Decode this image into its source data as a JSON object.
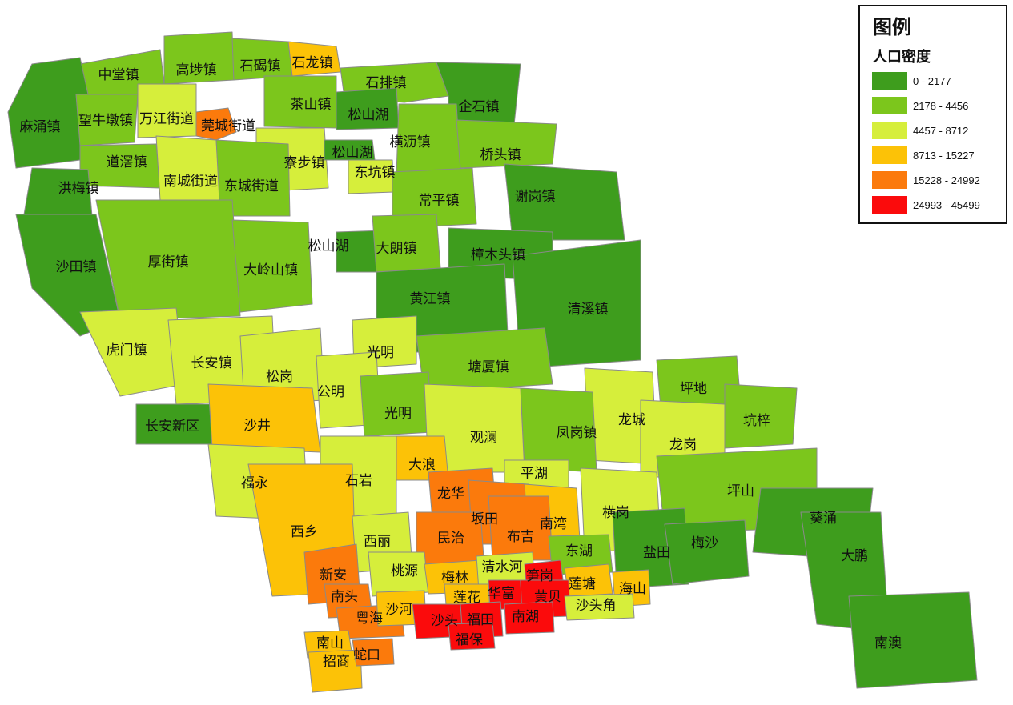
{
  "legend": {
    "title": "图例",
    "subtitle": "人口密度",
    "classes": [
      {
        "label": "0 - 2177",
        "color": "#3e9d1d"
      },
      {
        "label": "2178 - 4456",
        "color": "#7cc61c"
      },
      {
        "label": "4457 - 8712",
        "color": "#d6ee3b"
      },
      {
        "label": "8713 - 15227",
        "color": "#fcc207"
      },
      {
        "label": "15228 - 24992",
        "color": "#fb7a0c"
      },
      {
        "label": "24993 - 45499",
        "color": "#fb0b0c"
      }
    ]
  },
  "regions": [
    {
      "name": "中堂镇",
      "cls": 1
    },
    {
      "name": "高埗镇",
      "cls": 1
    },
    {
      "name": "石碣镇",
      "cls": 1
    },
    {
      "name": "石龙镇",
      "cls": 3
    },
    {
      "name": "石排镇",
      "cls": 1
    },
    {
      "name": "麻涌镇",
      "cls": 0
    },
    {
      "name": "望牛墩镇",
      "cls": 1
    },
    {
      "name": "万江街道",
      "cls": 2
    },
    {
      "name": "莞城街道",
      "cls": 4
    },
    {
      "name": "茶山镇",
      "cls": 1
    },
    {
      "name": "松山湖",
      "cls": 0
    },
    {
      "name": "企石镇",
      "cls": 0
    },
    {
      "name": "横沥镇",
      "cls": 1
    },
    {
      "name": "桥头镇",
      "cls": 1
    },
    {
      "name": "道滘镇",
      "cls": 1
    },
    {
      "name": "寮步镇",
      "cls": 2
    },
    {
      "name": "松山湖",
      "cls": 0
    },
    {
      "name": "东坑镇",
      "cls": 2
    },
    {
      "name": "南城街道",
      "cls": 2
    },
    {
      "name": "东城街道",
      "cls": 1
    },
    {
      "name": "洪梅镇",
      "cls": 0
    },
    {
      "name": "常平镇",
      "cls": 1
    },
    {
      "name": "谢岗镇",
      "cls": 0
    },
    {
      "name": "沙田镇",
      "cls": 0
    },
    {
      "name": "厚街镇",
      "cls": 1
    },
    {
      "name": "松山湖",
      "cls": 0
    },
    {
      "name": "大朗镇",
      "cls": 1
    },
    {
      "name": "大岭山镇",
      "cls": 1
    },
    {
      "name": "樟木头镇",
      "cls": 0
    },
    {
      "name": "黄江镇",
      "cls": 0
    },
    {
      "name": "清溪镇",
      "cls": 0
    },
    {
      "name": "虎门镇",
      "cls": 2
    },
    {
      "name": "长安镇",
      "cls": 2
    },
    {
      "name": "光明",
      "cls": 2
    },
    {
      "name": "塘厦镇",
      "cls": 1
    },
    {
      "name": "松岗",
      "cls": 2
    },
    {
      "name": "公明",
      "cls": 2
    },
    {
      "name": "坪地",
      "cls": 1
    },
    {
      "name": "长安新区",
      "cls": 0
    },
    {
      "name": "沙井",
      "cls": 3
    },
    {
      "name": "光明",
      "cls": 1
    },
    {
      "name": "龙城",
      "cls": 2
    },
    {
      "name": "坑梓",
      "cls": 1
    },
    {
      "name": "凤岗镇",
      "cls": 1
    },
    {
      "name": "观澜",
      "cls": 2
    },
    {
      "name": "龙岗",
      "cls": 2
    },
    {
      "name": "福永",
      "cls": 2
    },
    {
      "name": "大浪",
      "cls": 3
    },
    {
      "name": "石岩",
      "cls": 2
    },
    {
      "name": "平湖",
      "cls": 2
    },
    {
      "name": "坪山",
      "cls": 1
    },
    {
      "name": "龙华",
      "cls": 4
    },
    {
      "name": "坂田",
      "cls": 4
    },
    {
      "name": "西乡",
      "cls": 3
    },
    {
      "name": "南湾",
      "cls": 3
    },
    {
      "name": "横岗",
      "cls": 2
    },
    {
      "name": "葵涌",
      "cls": 0
    },
    {
      "name": "民治",
      "cls": 4
    },
    {
      "name": "布吉",
      "cls": 4
    },
    {
      "name": "西丽",
      "cls": 2
    },
    {
      "name": "东湖",
      "cls": 1
    },
    {
      "name": "盐田",
      "cls": 0
    },
    {
      "name": "梅沙",
      "cls": 0
    },
    {
      "name": "大鹏",
      "cls": 0
    },
    {
      "name": "新安",
      "cls": 4
    },
    {
      "name": "桃源",
      "cls": 2
    },
    {
      "name": "梅林",
      "cls": 3
    },
    {
      "name": "清水河",
      "cls": 2
    },
    {
      "name": "笋岗",
      "cls": 5
    },
    {
      "name": "莲塘",
      "cls": 3
    },
    {
      "name": "南头",
      "cls": 4
    },
    {
      "name": "莲花",
      "cls": 3
    },
    {
      "name": "华富",
      "cls": 5
    },
    {
      "name": "黄贝",
      "cls": 5
    },
    {
      "name": "海山",
      "cls": 3
    },
    {
      "name": "沙头角",
      "cls": 2
    },
    {
      "name": "粤海",
      "cls": 4
    },
    {
      "name": "沙河",
      "cls": 3
    },
    {
      "name": "沙头",
      "cls": 5
    },
    {
      "name": "福田",
      "cls": 5
    },
    {
      "name": "南湖",
      "cls": 5
    },
    {
      "name": "南澳",
      "cls": 0
    },
    {
      "name": "福保",
      "cls": 5
    },
    {
      "name": "南山",
      "cls": 3
    },
    {
      "name": "招商",
      "cls": 3
    },
    {
      "name": "蛇口",
      "cls": 4
    }
  ]
}
